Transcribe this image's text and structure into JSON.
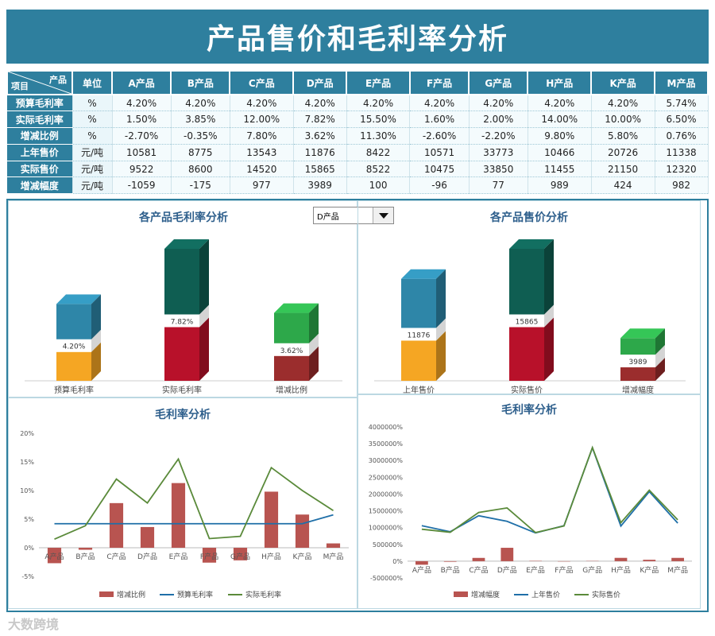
{
  "title": "产品售价和毛利率分析",
  "table": {
    "corner_top": "产品",
    "corner_bottom": "项目",
    "unit_header": "单位",
    "products": [
      "A产品",
      "B产品",
      "C产品",
      "D产品",
      "E产品",
      "F产品",
      "G产品",
      "H产品",
      "K产品",
      "M产品"
    ],
    "rows": [
      {
        "label": "预算毛利率",
        "unit": "%",
        "values": [
          "4.20%",
          "4.20%",
          "4.20%",
          "4.20%",
          "4.20%",
          "4.20%",
          "4.20%",
          "4.20%",
          "4.20%",
          "5.74%"
        ]
      },
      {
        "label": "实际毛利率",
        "unit": "%",
        "values": [
          "1.50%",
          "3.85%",
          "12.00%",
          "7.82%",
          "15.50%",
          "1.60%",
          "2.00%",
          "14.00%",
          "10.00%",
          "6.50%"
        ]
      },
      {
        "label": "增减比例",
        "unit": "%",
        "values": [
          "-2.70%",
          "-0.35%",
          "7.80%",
          "3.62%",
          "11.30%",
          "-2.60%",
          "-2.20%",
          "9.80%",
          "5.80%",
          "0.76%"
        ]
      },
      {
        "label": "上年售价",
        "unit": "元/吨",
        "values": [
          "10581",
          "8775",
          "13543",
          "11876",
          "8422",
          "10571",
          "33773",
          "10466",
          "20726",
          "11338"
        ]
      },
      {
        "label": "实际售价",
        "unit": "元/吨",
        "values": [
          "9522",
          "8600",
          "14520",
          "15865",
          "8522",
          "10475",
          "33850",
          "11455",
          "21150",
          "12320"
        ]
      },
      {
        "label": "增减幅度",
        "unit": "元/吨",
        "values": [
          "-1059",
          "-175",
          "977",
          "3989",
          "100",
          "-96",
          "77",
          "989",
          "424",
          "982"
        ]
      }
    ]
  },
  "dropdown": {
    "selected": "D产品"
  },
  "chart_data": [
    {
      "type": "bar",
      "title": "各产品毛利率分析",
      "categories": [
        "预算毛利率",
        "实际毛利率",
        "增减比例"
      ],
      "values": [
        4.2,
        7.82,
        3.62
      ],
      "labels": [
        "4.20%",
        "7.82%",
        "3.62%"
      ],
      "colors": {
        "top": [
          "#2e86a8",
          "#0f5e52",
          "#2da84a"
        ],
        "bottom": [
          "#f5a623",
          "#b8112a",
          "#9b2d2d"
        ]
      }
    },
    {
      "type": "bar",
      "title": "各产品售价分析",
      "categories": [
        "上年售价",
        "实际售价",
        "增减幅度"
      ],
      "values": [
        11876,
        15865,
        3989
      ],
      "labels": [
        "11876",
        "15865",
        "3989"
      ],
      "colors": {
        "top": [
          "#2e86a8",
          "#0f5e52",
          "#2da84a"
        ],
        "bottom": [
          "#f5a623",
          "#b8112a",
          "#9b2d2d"
        ]
      }
    },
    {
      "type": "bar+line",
      "title": "毛利率分析",
      "categories": [
        "A产品",
        "B产品",
        "C产品",
        "D产品",
        "E产品",
        "F产品",
        "G产品",
        "H产品",
        "K产品",
        "M产品"
      ],
      "ylim": [
        -5,
        20
      ],
      "yticks": [
        "-5%",
        "0%",
        "5%",
        "10%",
        "15%",
        "20%"
      ],
      "series": [
        {
          "name": "增减比例",
          "kind": "bar",
          "color": "#b85450",
          "values": [
            -2.7,
            -0.35,
            7.8,
            3.62,
            11.3,
            -2.6,
            -2.2,
            9.8,
            5.8,
            0.76
          ]
        },
        {
          "name": "预算毛利率",
          "kind": "line",
          "color": "#1f6fa8",
          "values": [
            4.2,
            4.2,
            4.2,
            4.2,
            4.2,
            4.2,
            4.2,
            4.2,
            4.2,
            5.74
          ]
        },
        {
          "name": "实际毛利率",
          "kind": "line",
          "color": "#5a8a3a",
          "values": [
            1.5,
            3.85,
            12.0,
            7.82,
            15.5,
            1.6,
            2.0,
            14.0,
            10.0,
            6.5
          ]
        }
      ]
    },
    {
      "type": "bar+line",
      "title": "毛利率分析",
      "categories": [
        "A产品",
        "B产品",
        "C产品",
        "D产品",
        "E产品",
        "F产品",
        "G产品",
        "H产品",
        "K产品",
        "M产品"
      ],
      "ylim": [
        -500000,
        4000000
      ],
      "yticks": [
        "-500000%",
        "0%",
        "500000%",
        "1000000%",
        "1500000%",
        "2000000%",
        "2500000%",
        "3000000%",
        "3500000%",
        "4000000%"
      ],
      "series": [
        {
          "name": "增减幅度",
          "kind": "bar",
          "color": "#b85450",
          "values": [
            -105900,
            -17500,
            97700,
            398900,
            10000,
            -9600,
            7700,
            98900,
            42400,
            98200
          ]
        },
        {
          "name": "上年售价",
          "kind": "line",
          "color": "#1f6fa8",
          "values": [
            1058100,
            877500,
            1354300,
            1187600,
            842200,
            1057100,
            3377300,
            1046600,
            2072600,
            1133800
          ]
        },
        {
          "name": "实际售价",
          "kind": "line",
          "color": "#5a8a3a",
          "values": [
            952200,
            860000,
            1452000,
            1586500,
            852200,
            1047500,
            3385000,
            1145500,
            2115000,
            1232000
          ]
        }
      ]
    }
  ],
  "watermark": "大数跨境"
}
